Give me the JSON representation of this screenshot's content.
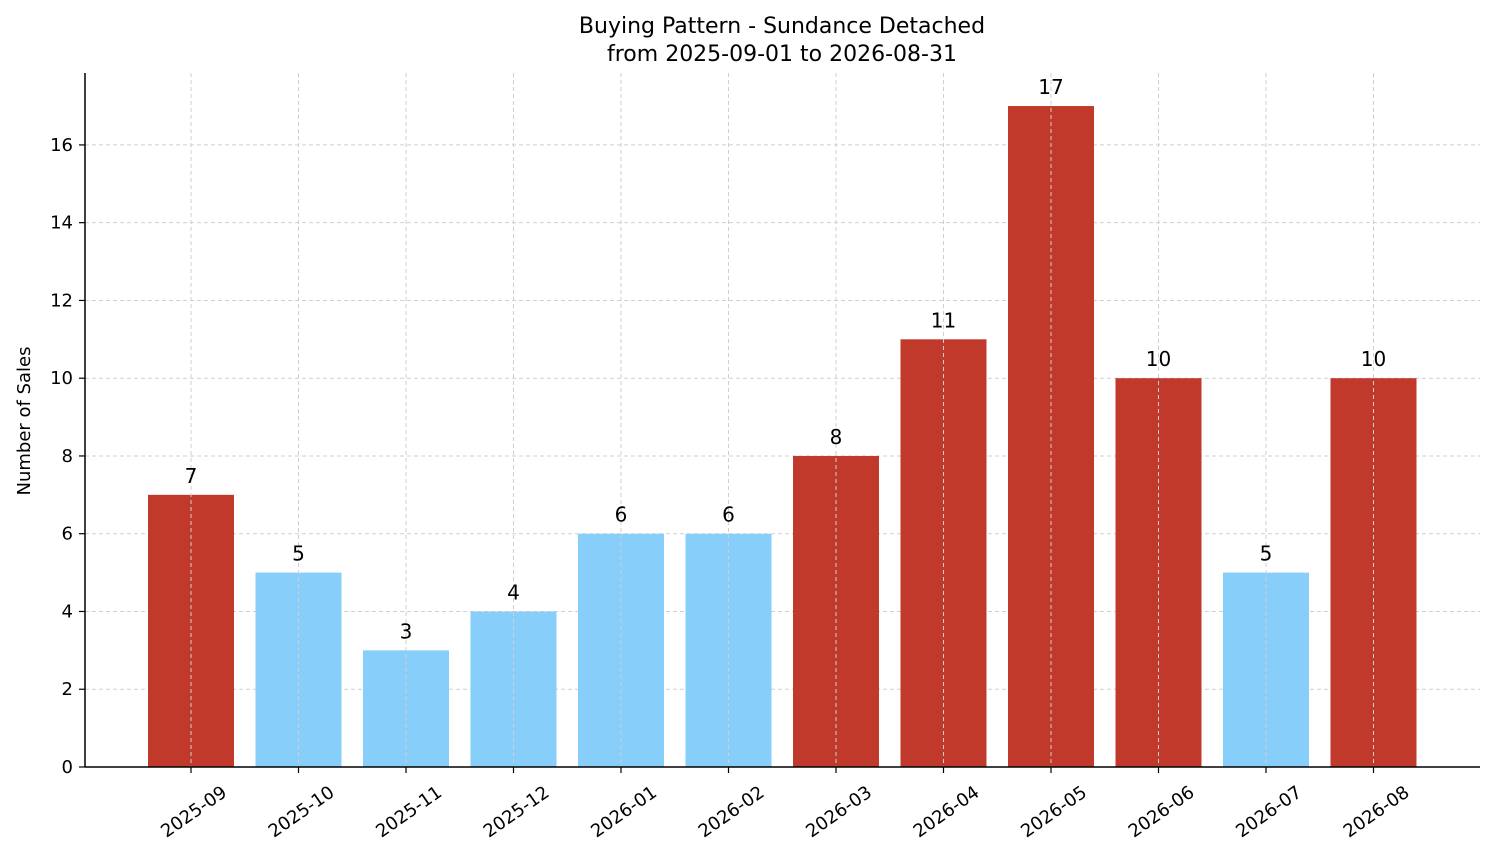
{
  "chart_data": {
    "type": "bar",
    "title": "Buying Pattern - Sundance Detached",
    "subtitle": "from 2025-09-01 to 2026-08-31",
    "xlabel": "",
    "ylabel": "Number of Sales",
    "categories": [
      "2025-09",
      "2025-10",
      "2025-11",
      "2025-12",
      "2026-01",
      "2026-02",
      "2026-03",
      "2026-04",
      "2026-05",
      "2026-06",
      "2026-07",
      "2026-08"
    ],
    "values": [
      7,
      5,
      3,
      4,
      6,
      6,
      8,
      11,
      17,
      10,
      5,
      10
    ],
    "bar_colors": [
      "#c0392b",
      "#87cefa",
      "#87cefa",
      "#87cefa",
      "#87cefa",
      "#87cefa",
      "#c0392b",
      "#c0392b",
      "#c0392b",
      "#c0392b",
      "#87cefa",
      "#c0392b"
    ],
    "yticks": [
      0,
      2,
      4,
      6,
      8,
      10,
      12,
      14,
      16
    ],
    "ylim": [
      0,
      17.85
    ],
    "grid": true,
    "legend": "none",
    "data_labels": true
  }
}
